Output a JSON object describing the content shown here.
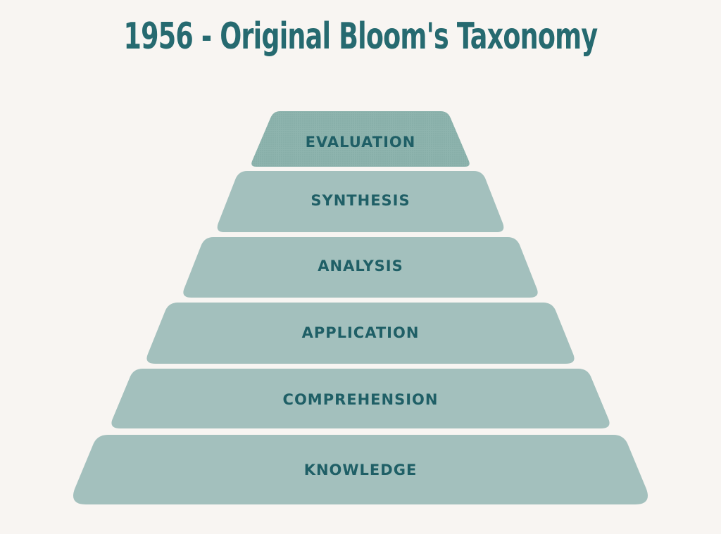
{
  "title": "1956 - Original Bloom's Taxonomy",
  "colors": {
    "background": "#f8f5f2",
    "title": "#266a70",
    "tier_fill": "#a3c0bd",
    "top_tier_fill": "#8eb4ae",
    "label": "#1f5f66"
  },
  "pyramid": {
    "tiers": [
      {
        "label": "EVALUATION",
        "highlight": true
      },
      {
        "label": "SYNTHESIS",
        "highlight": false
      },
      {
        "label": "ANALYSIS",
        "highlight": false
      },
      {
        "label": "APPLICATION",
        "highlight": false
      },
      {
        "label": "COMPREHENSION",
        "highlight": false
      },
      {
        "label": "KNOWLEDGE",
        "highlight": false
      }
    ]
  }
}
